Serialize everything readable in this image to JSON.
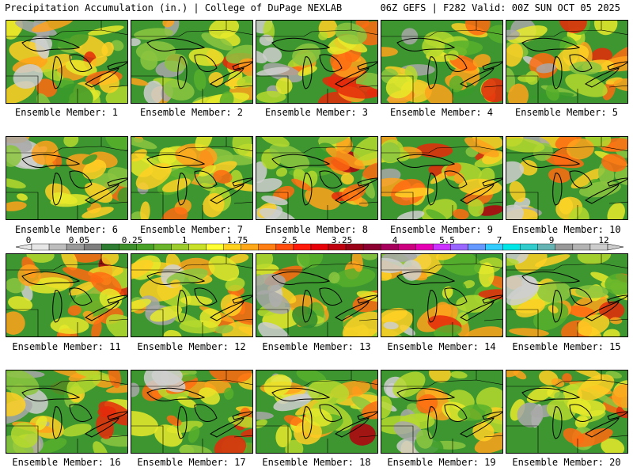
{
  "header": {
    "title_left": "Precipitation Accumulation (in.) | College of DuPage NEXLAB",
    "title_right": "06Z GEFS | F282 Valid: 00Z SUN OCT 05 2025"
  },
  "panel_label_prefix": "Ensemble Member: ",
  "members": [
    {
      "id": "1",
      "seed": 11,
      "wet": 0.35
    },
    {
      "id": "2",
      "seed": 23,
      "wet": 0.55
    },
    {
      "id": "3",
      "seed": 37,
      "wet": 0.6
    },
    {
      "id": "4",
      "seed": 41,
      "wet": 0.3
    },
    {
      "id": "5",
      "seed": 53,
      "wet": 0.45
    },
    {
      "id": "6",
      "seed": 67,
      "wet": 0.25
    },
    {
      "id": "7",
      "seed": 71,
      "wet": 0.45
    },
    {
      "id": "8",
      "seed": 83,
      "wet": 0.5
    },
    {
      "id": "9",
      "seed": 97,
      "wet": 0.7
    },
    {
      "id": "10",
      "seed": 101,
      "wet": 0.5
    },
    {
      "id": "11",
      "seed": 113,
      "wet": 0.55
    },
    {
      "id": "12",
      "seed": 127,
      "wet": 0.5
    },
    {
      "id": "13",
      "seed": 131,
      "wet": 0.3
    },
    {
      "id": "14",
      "seed": 149,
      "wet": 0.45
    },
    {
      "id": "15",
      "seed": 157,
      "wet": 0.4
    },
    {
      "id": "16",
      "seed": 163,
      "wet": 0.5
    },
    {
      "id": "17",
      "seed": 173,
      "wet": 0.35
    },
    {
      "id": "18",
      "seed": 181,
      "wet": 0.55
    },
    {
      "id": "19",
      "seed": 191,
      "wet": 0.4
    },
    {
      "id": "20",
      "seed": 197,
      "wet": 0.4
    }
  ],
  "colorbar": {
    "labels": [
      "0",
      "0.05",
      "0.25",
      "1",
      "1.75",
      "2.5",
      "3.25",
      "4",
      "5.5",
      "7",
      "9",
      "12"
    ],
    "colors": [
      "#e6e6e6",
      "#bdbdbd",
      "#9a9a9a",
      "#7f7f7f",
      "#2e7d32",
      "#3c8f2a",
      "#4aa12a",
      "#6bb52c",
      "#9ccc2d",
      "#c8e028",
      "#ffff33",
      "#ffd21f",
      "#ffa81a",
      "#ff7f14",
      "#ff4d0f",
      "#ff1a0a",
      "#e6000a",
      "#bf0010",
      "#990018",
      "#8b0030",
      "#a6005c",
      "#cc007f",
      "#e600b3",
      "#cc33ff",
      "#9966ff",
      "#6699ff",
      "#33ccff",
      "#00e6e6",
      "#33cccc",
      "#66b3b3",
      "#999999",
      "#b3b3b3",
      "#cccccc"
    ]
  }
}
